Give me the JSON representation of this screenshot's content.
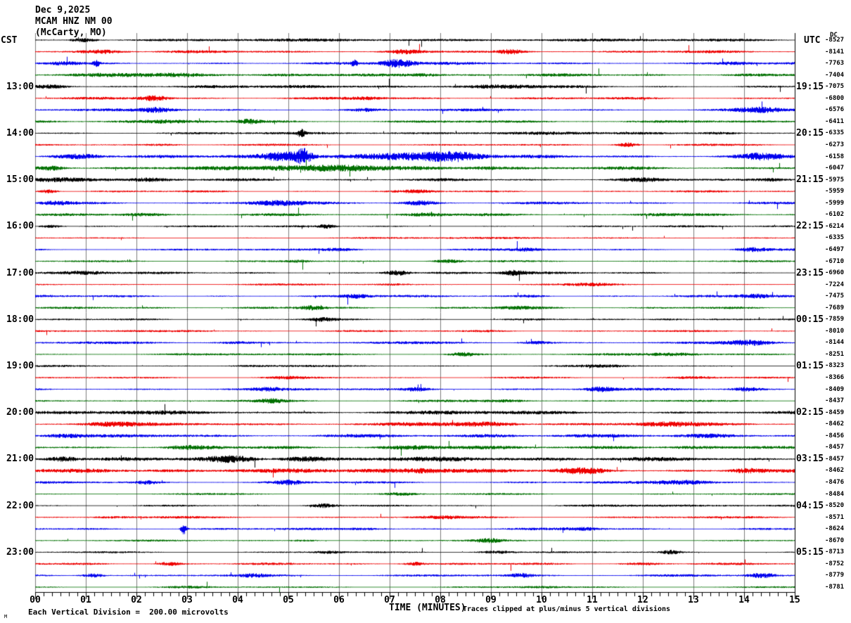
{
  "header": {
    "date": "Dec 9,2025",
    "station": "MCAM HNZ NM 00",
    "location": "(McCarty, MO)"
  },
  "corner_labels": {
    "left_tz": "CST",
    "right_tz": "UTC",
    "dc_header": "DC"
  },
  "footer": {
    "scale_note": "Each Vertical Division =  200.00 microvolts",
    "clip_note": "Traces clipped at plus/minus 5 vertical divisions",
    "corner_mark": "M"
  },
  "colors": {
    "background": "#ffffff",
    "grid": "#7d7d7d",
    "axis": "#000000",
    "trace_cycle": [
      "#000000",
      "#ee0000",
      "#0000ee",
      "#007000"
    ]
  },
  "chart_data": {
    "type": "line",
    "subtype": "helicorder-webicorder",
    "title": "MCAM HNZ NM 00 (McCarty, MO) Dec 9,2025",
    "xlabel": "TIME (MINUTES)",
    "x_ticks": [
      "00",
      "01",
      "02",
      "03",
      "04",
      "05",
      "06",
      "07",
      "08",
      "09",
      "10",
      "11",
      "12",
      "13",
      "14",
      "15"
    ],
    "x_range_minutes": [
      0,
      15
    ],
    "minutes_per_line": 15,
    "traces_per_hour": 4,
    "num_traces": 48,
    "grid": true,
    "minor_ticks_per_minute": 6,
    "microvolts_per_division": 200.0,
    "clip_divisions": 5,
    "left_time_labels": [
      {
        "text": "13:00",
        "trace": 4
      },
      {
        "text": "14:00",
        "trace": 8
      },
      {
        "text": "15:00",
        "trace": 12
      },
      {
        "text": "16:00",
        "trace": 16
      },
      {
        "text": "17:00",
        "trace": 20
      },
      {
        "text": "18:00",
        "trace": 24
      },
      {
        "text": "19:00",
        "trace": 28
      },
      {
        "text": "20:00",
        "trace": 32
      },
      {
        "text": "21:00",
        "trace": 36
      },
      {
        "text": "22:00",
        "trace": 40
      },
      {
        "text": "23:00",
        "trace": 44
      }
    ],
    "right_time_labels": [
      {
        "text": "19:15",
        "trace": 4
      },
      {
        "text": "20:15",
        "trace": 8
      },
      {
        "text": "21:15",
        "trace": 12
      },
      {
        "text": "22:15",
        "trace": 16
      },
      {
        "text": "23:15",
        "trace": 20
      },
      {
        "text": "00:15",
        "trace": 24
      },
      {
        "text": "01:15",
        "trace": 28
      },
      {
        "text": "02:15",
        "trace": 32
      },
      {
        "text": "03:15",
        "trace": 36
      },
      {
        "text": "04:15",
        "trace": 40
      },
      {
        "text": "05:15",
        "trace": 44
      }
    ],
    "dc_values": [
      -8527,
      -8141,
      -7763,
      -7404,
      -7075,
      -6800,
      -6576,
      -6411,
      -6335,
      -6273,
      -6158,
      -6047,
      -5975,
      -5959,
      -5999,
      -6102,
      -6214,
      -6335,
      -6497,
      -6710,
      -6960,
      -7224,
      -7475,
      -7689,
      -7859,
      -8010,
      -8144,
      -8251,
      -8323,
      -8366,
      -8409,
      -8437,
      -8459,
      -8462,
      -8456,
      -8457,
      -8457,
      -8462,
      -8476,
      -8484,
      -8520,
      -8571,
      -8624,
      -8670,
      -8713,
      -8752,
      -8779,
      -8781
    ],
    "waveform_seed": 137,
    "traces": [
      {
        "start_cst": "12:00",
        "color_index": 0,
        "amp": 2.0,
        "bursts": [
          [
            0.95,
            0.18,
            2.5
          ],
          [
            8.0,
            2.5,
            0.8
          ]
        ]
      },
      {
        "start_cst": "12:15",
        "color_index": 1,
        "amp": 2.2,
        "bursts": [
          [
            1.3,
            0.3,
            2.5
          ],
          [
            7.3,
            0.2,
            2.0
          ],
          [
            9.4,
            0.15,
            2.5
          ]
        ]
      },
      {
        "start_cst": "12:30",
        "color_index": 2,
        "amp": 2.2,
        "bursts": [
          [
            0.55,
            0.2,
            2.0
          ],
          [
            1.2,
            0.05,
            4.0
          ],
          [
            6.3,
            0.04,
            5.0
          ],
          [
            7.15,
            0.22,
            5.0
          ],
          [
            13.8,
            0.3,
            2.0
          ]
        ]
      },
      {
        "start_cst": "12:45",
        "color_index": 3,
        "amp": 2.4,
        "bursts": [
          [
            2.6,
            0.8,
            2.0
          ],
          [
            7.6,
            0.3,
            2.0
          ]
        ]
      },
      {
        "start_cst": "13:00",
        "color_index": 0,
        "amp": 2.0,
        "bursts": [
          [
            0.3,
            0.25,
            2.5
          ],
          [
            6.0,
            1.5,
            0.8
          ],
          [
            9.3,
            0.6,
            1.5
          ]
        ]
      },
      {
        "start_cst": "13:15",
        "color_index": 1,
        "amp": 2.0,
        "bursts": [
          [
            2.35,
            0.2,
            3.5
          ],
          [
            6.5,
            0.3,
            1.5
          ]
        ]
      },
      {
        "start_cst": "13:30",
        "color_index": 2,
        "amp": 2.0,
        "bursts": [
          [
            2.4,
            0.25,
            3.0
          ],
          [
            6.5,
            0.2,
            1.5
          ],
          [
            14.3,
            0.35,
            3.5
          ]
        ]
      },
      {
        "start_cst": "13:45",
        "color_index": 3,
        "amp": 2.2,
        "bursts": [
          [
            2.3,
            0.6,
            1.5
          ],
          [
            4.2,
            0.15,
            2.5
          ]
        ]
      },
      {
        "start_cst": "14:00",
        "color_index": 0,
        "amp": 1.8,
        "bursts": [
          [
            5.25,
            0.05,
            5.0
          ],
          [
            9.0,
            2.0,
            0.8
          ],
          [
            13.5,
            0.3,
            1.5
          ]
        ]
      },
      {
        "start_cst": "14:15",
        "color_index": 1,
        "amp": 1.6,
        "bursts": [
          [
            2.5,
            0.3,
            1.0
          ],
          [
            11.7,
            0.15,
            3.0
          ]
        ]
      },
      {
        "start_cst": "14:30",
        "color_index": 2,
        "amp": 2.4,
        "bursts": [
          [
            0.9,
            0.35,
            3.0
          ],
          [
            4.95,
            0.35,
            6.0
          ],
          [
            5.3,
            0.1,
            8.0
          ],
          [
            7.3,
            0.8,
            5.0
          ],
          [
            8.3,
            0.4,
            4.0
          ],
          [
            14.35,
            0.35,
            5.0
          ]
        ]
      },
      {
        "start_cst": "14:45",
        "color_index": 3,
        "amp": 2.6,
        "bursts": [
          [
            0.3,
            0.2,
            3.0
          ],
          [
            5.0,
            0.8,
            3.0
          ],
          [
            6.3,
            0.6,
            2.5
          ],
          [
            9.0,
            0.4,
            2.0
          ]
        ]
      },
      {
        "start_cst": "15:00",
        "color_index": 0,
        "amp": 2.2,
        "bursts": [
          [
            0.8,
            0.6,
            2.0
          ],
          [
            2.2,
            0.3,
            2.0
          ],
          [
            12.0,
            0.3,
            1.5
          ],
          [
            14.5,
            0.3,
            2.0
          ]
        ]
      },
      {
        "start_cst": "15:15",
        "color_index": 1,
        "amp": 1.6,
        "bursts": [
          [
            0.25,
            0.12,
            2.5
          ],
          [
            7.5,
            0.25,
            1.5
          ]
        ]
      },
      {
        "start_cst": "15:30",
        "color_index": 2,
        "amp": 2.0,
        "bursts": [
          [
            0.4,
            0.2,
            2.0
          ],
          [
            4.7,
            0.4,
            3.0
          ],
          [
            7.6,
            0.25,
            3.0
          ]
        ]
      },
      {
        "start_cst": "15:45",
        "color_index": 3,
        "amp": 2.0,
        "bursts": [
          [
            2.1,
            0.3,
            2.0
          ],
          [
            7.7,
            0.3,
            2.5
          ],
          [
            12.2,
            0.3,
            1.5
          ]
        ]
      },
      {
        "start_cst": "16:00",
        "color_index": 0,
        "amp": 1.5,
        "bursts": [
          [
            0.3,
            0.15,
            2.0
          ],
          [
            5.75,
            0.12,
            2.5
          ]
        ]
      },
      {
        "start_cst": "16:15",
        "color_index": 1,
        "amp": 1.3,
        "bursts": [
          [
            10.0,
            2.0,
            0.4
          ]
        ]
      },
      {
        "start_cst": "16:30",
        "color_index": 2,
        "amp": 1.8,
        "bursts": [
          [
            6.0,
            0.3,
            1.5
          ],
          [
            9.7,
            0.2,
            1.5
          ],
          [
            14.15,
            0.2,
            2.5
          ]
        ]
      },
      {
        "start_cst": "16:45",
        "color_index": 3,
        "amp": 1.5,
        "bursts": [
          [
            5.2,
            0.15,
            1.5
          ],
          [
            8.15,
            0.2,
            2.5
          ]
        ]
      },
      {
        "start_cst": "17:00",
        "color_index": 0,
        "amp": 1.9,
        "bursts": [
          [
            1.0,
            0.3,
            1.5
          ],
          [
            7.15,
            0.18,
            3.5
          ],
          [
            9.45,
            0.18,
            3.0
          ]
        ]
      },
      {
        "start_cst": "17:15",
        "color_index": 1,
        "amp": 1.5,
        "bursts": [
          [
            7.0,
            0.3,
            1.2
          ],
          [
            11.0,
            0.3,
            1.2
          ]
        ]
      },
      {
        "start_cst": "17:30",
        "color_index": 2,
        "amp": 1.8,
        "bursts": [
          [
            6.35,
            0.2,
            2.5
          ],
          [
            9.8,
            0.2,
            1.5
          ],
          [
            14.2,
            0.25,
            2.5
          ]
        ]
      },
      {
        "start_cst": "17:45",
        "color_index": 3,
        "amp": 1.8,
        "bursts": [
          [
            5.45,
            0.18,
            2.5
          ],
          [
            9.5,
            0.3,
            1.5
          ]
        ]
      },
      {
        "start_cst": "18:00",
        "color_index": 0,
        "amp": 1.5,
        "bursts": [
          [
            5.65,
            0.18,
            2.0
          ],
          [
            12.5,
            0.3,
            1.0
          ]
        ]
      },
      {
        "start_cst": "18:15",
        "color_index": 1,
        "amp": 1.5,
        "bursts": [
          [
            3.0,
            0.4,
            1.0
          ],
          [
            9.0,
            0.3,
            1.0
          ]
        ]
      },
      {
        "start_cst": "18:30",
        "color_index": 2,
        "amp": 2.0,
        "bursts": [
          [
            4.0,
            0.3,
            1.5
          ],
          [
            9.9,
            0.2,
            2.0
          ],
          [
            14.15,
            0.3,
            3.0
          ]
        ]
      },
      {
        "start_cst": "18:45",
        "color_index": 3,
        "amp": 1.8,
        "bursts": [
          [
            8.45,
            0.2,
            2.5
          ],
          [
            12.6,
            0.3,
            1.5
          ]
        ]
      },
      {
        "start_cst": "19:00",
        "color_index": 0,
        "amp": 1.5,
        "bursts": [
          [
            4.3,
            0.3,
            1.2
          ],
          [
            11.2,
            0.3,
            1.2
          ]
        ]
      },
      {
        "start_cst": "19:15",
        "color_index": 1,
        "amp": 1.5,
        "bursts": [
          [
            5.0,
            0.3,
            1.2
          ],
          [
            13.0,
            0.3,
            1.5
          ]
        ]
      },
      {
        "start_cst": "19:30",
        "color_index": 2,
        "amp": 2.0,
        "bursts": [
          [
            4.6,
            0.2,
            1.5
          ],
          [
            7.55,
            0.2,
            2.5
          ],
          [
            11.15,
            0.18,
            3.0
          ],
          [
            14.05,
            0.2,
            2.5
          ]
        ]
      },
      {
        "start_cst": "19:45",
        "color_index": 3,
        "amp": 1.8,
        "bursts": [
          [
            4.65,
            0.18,
            2.5
          ],
          [
            9.3,
            0.3,
            1.5
          ]
        ]
      },
      {
        "start_cst": "20:00",
        "color_index": 0,
        "amp": 2.4,
        "bursts": [
          [
            2.5,
            1.5,
            0.8
          ],
          [
            9.5,
            1.5,
            0.8
          ]
        ]
      },
      {
        "start_cst": "20:15",
        "color_index": 1,
        "amp": 2.8,
        "bursts": [
          [
            1.5,
            0.4,
            1.5
          ],
          [
            8.9,
            0.4,
            3.0
          ],
          [
            12.5,
            0.4,
            2.0
          ]
        ]
      },
      {
        "start_cst": "20:30",
        "color_index": 2,
        "amp": 2.6,
        "bursts": [
          [
            0.6,
            0.3,
            2.5
          ],
          [
            9.0,
            0.4,
            1.5
          ],
          [
            13.2,
            0.4,
            2.5
          ]
        ]
      },
      {
        "start_cst": "20:45",
        "color_index": 3,
        "amp": 2.6,
        "bursts": [
          [
            3.0,
            0.3,
            1.5
          ],
          [
            7.5,
            0.5,
            2.0
          ],
          [
            11.5,
            0.4,
            1.5
          ]
        ]
      },
      {
        "start_cst": "21:00",
        "color_index": 0,
        "amp": 3.0,
        "bursts": [
          [
            0.55,
            0.25,
            3.0
          ],
          [
            3.9,
            0.35,
            3.5
          ],
          [
            5.3,
            0.3,
            3.0
          ],
          [
            9.0,
            1.5,
            1.0
          ]
        ]
      },
      {
        "start_cst": "21:15",
        "color_index": 1,
        "amp": 3.0,
        "bursts": [
          [
            5.0,
            1.0,
            2.0
          ],
          [
            7.7,
            0.3,
            2.0
          ],
          [
            10.8,
            0.35,
            3.5
          ],
          [
            14.05,
            0.25,
            3.0
          ]
        ]
      },
      {
        "start_cst": "21:30",
        "color_index": 2,
        "amp": 1.9,
        "bursts": [
          [
            2.2,
            0.15,
            2.0
          ],
          [
            5.0,
            0.2,
            2.5
          ],
          [
            12.8,
            0.45,
            3.0
          ]
        ]
      },
      {
        "start_cst": "21:45",
        "color_index": 3,
        "amp": 1.4,
        "bursts": [
          [
            7.2,
            0.25,
            2.0
          ]
        ]
      },
      {
        "start_cst": "22:00",
        "color_index": 0,
        "amp": 1.4,
        "bursts": [
          [
            5.7,
            0.2,
            3.0
          ],
          [
            13.0,
            1.5,
            0.8
          ]
        ]
      },
      {
        "start_cst": "22:15",
        "color_index": 1,
        "amp": 1.8,
        "bursts": [
          [
            1.5,
            0.3,
            1.2
          ],
          [
            8.0,
            0.3,
            1.2
          ]
        ]
      },
      {
        "start_cst": "22:30",
        "color_index": 2,
        "amp": 1.8,
        "bursts": [
          [
            2.93,
            0.04,
            9.0
          ],
          [
            6.5,
            0.3,
            1.2
          ],
          [
            10.8,
            0.25,
            2.0
          ]
        ]
      },
      {
        "start_cst": "22:45",
        "color_index": 3,
        "amp": 1.4,
        "bursts": [
          [
            5.3,
            0.2,
            1.2
          ],
          [
            8.95,
            0.18,
            2.5
          ]
        ]
      },
      {
        "start_cst": "23:00",
        "color_index": 0,
        "amp": 1.4,
        "bursts": [
          [
            5.8,
            0.2,
            1.5
          ],
          [
            9.1,
            0.25,
            2.0
          ],
          [
            12.55,
            0.15,
            2.5
          ]
        ]
      },
      {
        "start_cst": "23:15",
        "color_index": 1,
        "amp": 1.8,
        "bursts": [
          [
            2.65,
            0.15,
            2.5
          ],
          [
            7.5,
            0.15,
            2.5
          ],
          [
            12.0,
            0.3,
            1.2
          ]
        ]
      },
      {
        "start_cst": "23:30",
        "color_index": 2,
        "amp": 1.9,
        "bursts": [
          [
            1.15,
            0.15,
            2.5
          ],
          [
            4.3,
            0.2,
            1.5
          ],
          [
            9.6,
            0.15,
            2.5
          ],
          [
            14.35,
            0.2,
            3.0
          ]
        ]
      },
      {
        "start_cst": "23:45",
        "color_index": 3,
        "amp": 1.4,
        "bursts": [
          [
            3.0,
            0.3,
            1.0
          ],
          [
            10.0,
            0.3,
            1.0
          ]
        ]
      }
    ]
  }
}
